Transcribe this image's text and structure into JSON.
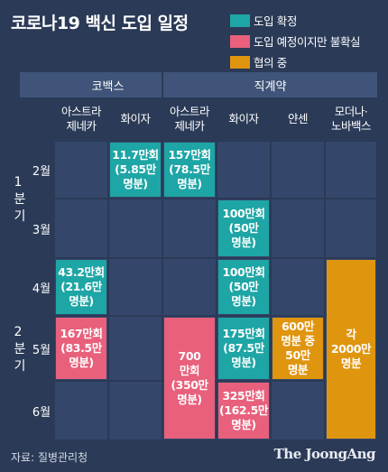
{
  "title": "코로나19 백신 도입 일정",
  "legend": [
    {
      "label": "도입 확정",
      "color": "#1ea5a5"
    },
    {
      "label": "도입 예정이지만 불확실",
      "color": "#e8607c"
    },
    {
      "label": "협의 중",
      "color": "#e0950f"
    }
  ],
  "groups": [
    {
      "label": "코백스",
      "span": 2
    },
    {
      "label": "직계약",
      "span": 4
    }
  ],
  "vaccines": [
    "아스트라\n제네카",
    "화이자",
    "아스트라\n제네카",
    "화이자",
    "얀센",
    "모더나·\n노바백스"
  ],
  "quarters": [
    {
      "label": "1\n분\n기",
      "months": [
        "2월",
        "3월"
      ]
    },
    {
      "label": "2\n분\n기",
      "months": [
        "4월",
        "5월",
        "6월"
      ]
    }
  ],
  "chart_data": {
    "type": "table",
    "rows": [
      "2월",
      "3월",
      "4월",
      "5월",
      "6월"
    ],
    "columns": [
      "코백스 아스트라제네카",
      "코백스 화이자",
      "직계약 아스트라제네카",
      "직계약 화이자",
      "직계약 얀센",
      "직계약 모더나·노바백스"
    ],
    "entries": [
      {
        "col": 1,
        "row_start": 0,
        "row_end": 0,
        "text": "11.7만회\n(5.85만\n명분)",
        "status": "도입 확정"
      },
      {
        "col": 2,
        "row_start": 0,
        "row_end": 0,
        "text": "157만회\n(78.5만\n명분)",
        "status": "도입 확정"
      },
      {
        "col": 3,
        "row_start": 1,
        "row_end": 1,
        "text": "100만회\n(50만\n명분)",
        "status": "도입 확정"
      },
      {
        "col": 0,
        "row_start": 2,
        "row_end": 2,
        "text": "43.2만회\n(21.6만\n명분)",
        "status": "도입 확정"
      },
      {
        "col": 3,
        "row_start": 2,
        "row_end": 2,
        "text": "100만회\n(50만\n명분)",
        "status": "도입 확정"
      },
      {
        "col": 0,
        "row_start": 3,
        "row_end": 3,
        "text": "167만회\n(83.5만\n명분)",
        "status": "도입 예정이지만 불확실"
      },
      {
        "col": 2,
        "row_start": 3,
        "row_end": 4,
        "text": "700\n만회\n(350만\n명분)",
        "status": "도입 예정이지만 불확실"
      },
      {
        "col": 3,
        "row_start": 3,
        "row_end": 3,
        "text": "175만회\n(87.5만\n명분)",
        "status": "도입 확정"
      },
      {
        "col": 4,
        "row_start": 3,
        "row_end": 3,
        "text": "600만\n명분 중\n50만\n명분",
        "status": "협의 중"
      },
      {
        "col": 5,
        "row_start": 2,
        "row_end": 4,
        "text": "각\n2000만\n명분",
        "status": "협의 중"
      },
      {
        "col": 3,
        "row_start": 4,
        "row_end": 4,
        "text": "325만회\n(162.5만\n명분)",
        "status": "도입 예정이지만 불확실"
      }
    ]
  },
  "source": "자료: 질병관리청",
  "brand": "The JoongAng"
}
